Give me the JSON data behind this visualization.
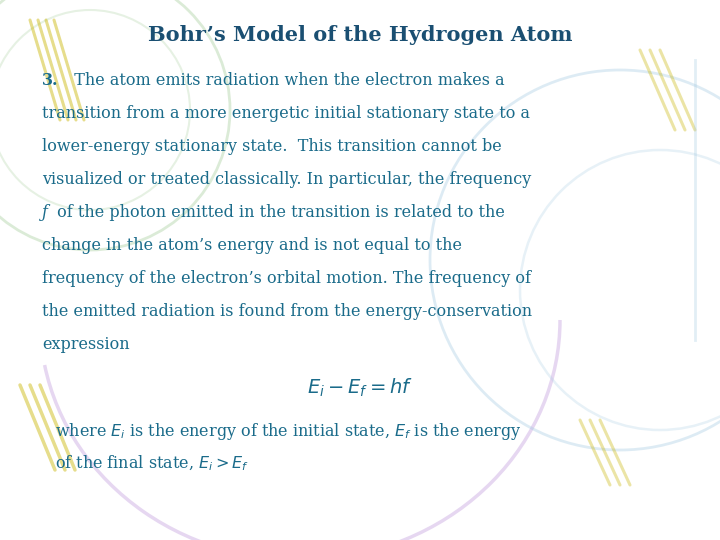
{
  "title": "Bohr’s Model of the Hydrogen Atom",
  "title_color": "#1a4f72",
  "title_fontsize": 15,
  "text_color": "#1a6b8a",
  "bg_color": "#ffffff",
  "fontsize": 11.5,
  "footer_fontsize": 11.5,
  "eq_fontsize": 14,
  "figsize": [
    7.2,
    5.4
  ],
  "para_lines": [
    "3.  The atom emits radiation when the electron makes a",
    "transition from a more energetic initial stationary state to a",
    "lower-energy stationary state.  This transition cannot be",
    "visualized or treated classically. In particular, the frequency",
    "f of the photon emitted in the transition is related to the",
    "change in the atom’s energy and is not equal to the",
    "frequency of the electron’s orbital motion. The frequency of",
    "the emitted radiation is found from the energy-conservation",
    "expression"
  ],
  "equation": "$E_i - E_f = hf$",
  "footer_line1": "where $E_i$ is the energy of the initial state, $E_f$ is the energy",
  "footer_line2": "of the final state, $E_i > E_f$",
  "yellow": "#c8b400",
  "purple": "#c8a8e0",
  "blue_arc": "#a0c8e0",
  "green_arc": "#b0d8b0"
}
